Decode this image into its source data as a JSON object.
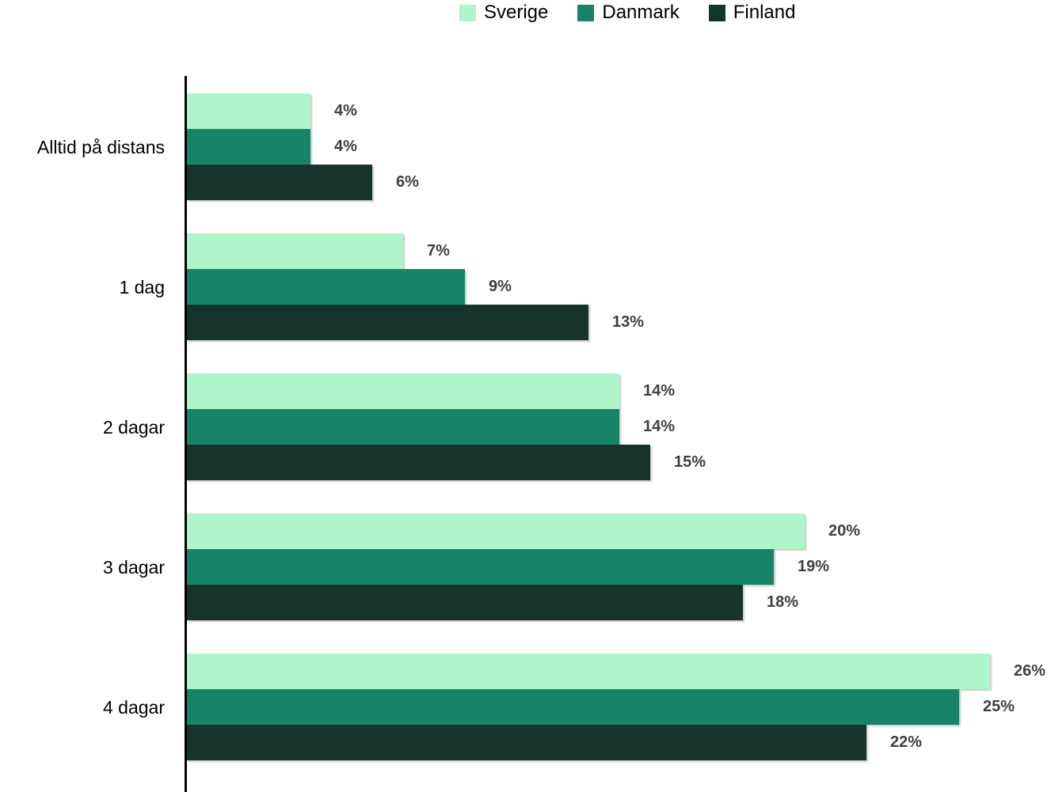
{
  "chart_data": {
    "type": "bar",
    "orientation": "horizontal",
    "title": "",
    "categories": [
      "Alltid på distans",
      "1 dag",
      "2 dagar",
      "3 dagar",
      "4 dagar"
    ],
    "series": [
      {
        "name": "Sverige",
        "color": "#AFF5CC",
        "values": [
          4,
          7,
          14,
          20,
          26
        ]
      },
      {
        "name": "Danmark",
        "color": "#178467",
        "values": [
          4,
          9,
          14,
          19,
          25
        ]
      },
      {
        "name": "Finland",
        "color": "#16342B",
        "values": [
          6,
          13,
          15,
          18,
          22
        ]
      }
    ],
    "value_suffix": "%",
    "xlim": [
      0,
      26
    ],
    "grid": false,
    "legend_position": "top",
    "axis_color": "#000000",
    "data_label_color": "#3F3F3F",
    "background_color": "#FFFFFF"
  }
}
